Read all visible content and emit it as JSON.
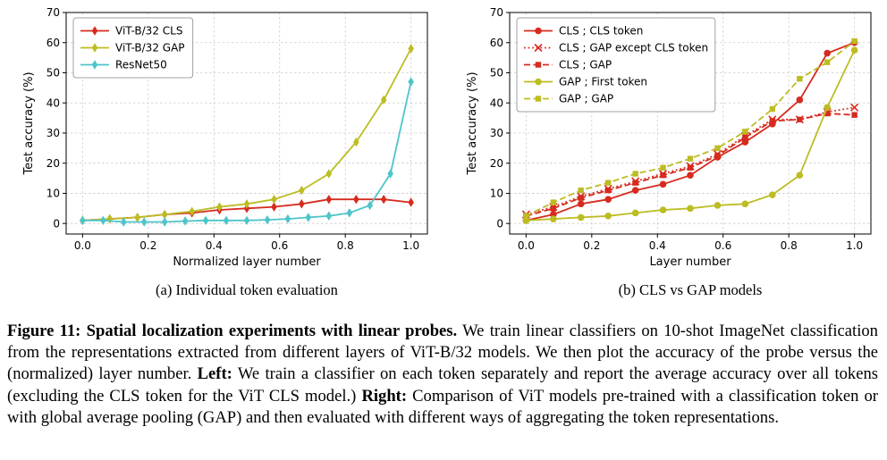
{
  "figure": {
    "subcaption_a": "(a) Individual token evaluation",
    "subcaption_b": "(b) CLS vs GAP models"
  },
  "caption": {
    "p1": "Figure 11: Spatial localization experiments with linear probes.",
    "p2": " We train linear classifiers on 10-shot ImageNet classification from the representations extracted from different layers of ViT-B/32 models. We then plot the accuracy of the probe versus the (normalized) layer number. ",
    "p3": "Left:",
    "p4": " We train a classifier on each token separately and report the average accuracy over all tokens (excluding the CLS token for the ViT CLS model.) ",
    "p5": "Right:",
    "p6": " Comparison of ViT models pre-trained with a classification token or with global average pooling (GAP) and then evaluated with different ways of aggregating the token representations."
  },
  "colors": {
    "red": "#d62b1f",
    "olive": "#bcbd22",
    "cyan": "#4ec5c9"
  },
  "chart_data": [
    {
      "type": "line",
      "title": "",
      "xlabel": "Normalized layer number",
      "ylabel": "Test accuracy (%)",
      "xlim": [
        -0.05,
        1.05
      ],
      "ylim": [
        -3.5,
        70
      ],
      "xticks": [
        0,
        0.2,
        0.4,
        0.6,
        0.8,
        1.0
      ],
      "xtick_labels": [
        "0.0",
        "0.2",
        "0.4",
        "0.6",
        "0.8",
        "1.0"
      ],
      "yticks": [
        0,
        10,
        20,
        30,
        40,
        50,
        60,
        70
      ],
      "ytick_labels": [
        "0",
        "10",
        "20",
        "30",
        "40",
        "50",
        "60",
        "70"
      ],
      "grid": true,
      "legend": true,
      "legend_position": "top-left",
      "series": [
        {
          "name": "ViT-B/32 CLS",
          "color": "#d62b1f",
          "line": "solid",
          "marker": "diamond",
          "x": [
            0,
            0.083,
            0.167,
            0.25,
            0.333,
            0.417,
            0.5,
            0.583,
            0.667,
            0.75,
            0.833,
            0.917,
            1.0
          ],
          "y": [
            1,
            1.5,
            2,
            3,
            3.5,
            4.5,
            5,
            5.5,
            6.5,
            8,
            8,
            8,
            7
          ]
        },
        {
          "name": "ViT-B/32 GAP",
          "color": "#bcbd22",
          "line": "solid",
          "marker": "diamond",
          "x": [
            0,
            0.083,
            0.167,
            0.25,
            0.333,
            0.417,
            0.5,
            0.583,
            0.667,
            0.75,
            0.833,
            0.917,
            1.0
          ],
          "y": [
            1,
            1.5,
            2,
            3,
            4,
            5.5,
            6.5,
            8,
            11,
            16.5,
            27,
            41,
            58
          ]
        },
        {
          "name": "ResNet50",
          "color": "#4ec5c9",
          "line": "solid",
          "marker": "diamond",
          "x": [
            0,
            0.0625,
            0.125,
            0.1875,
            0.25,
            0.3125,
            0.375,
            0.4375,
            0.5,
            0.5625,
            0.625,
            0.6875,
            0.75,
            0.8125,
            0.875,
            0.9375,
            1.0
          ],
          "y": [
            1,
            1,
            0.5,
            0.5,
            0.5,
            0.8,
            1,
            1,
            1,
            1.2,
            1.5,
            2,
            2.5,
            3.5,
            6,
            16.5,
            47
          ]
        }
      ]
    },
    {
      "type": "line",
      "title": "",
      "xlabel": "Layer number",
      "ylabel": "Test accuracy (%)",
      "xlim": [
        -0.05,
        1.05
      ],
      "ylim": [
        -3.5,
        70
      ],
      "xticks": [
        0,
        0.2,
        0.4,
        0.6,
        0.8,
        1.0
      ],
      "xtick_labels": [
        "0.0",
        "0.2",
        "0.4",
        "0.6",
        "0.8",
        "1.0"
      ],
      "yticks": [
        0,
        10,
        20,
        30,
        40,
        50,
        60,
        70
      ],
      "ytick_labels": [
        "0",
        "10",
        "20",
        "30",
        "40",
        "50",
        "60",
        "70"
      ],
      "grid": true,
      "legend": true,
      "legend_position": "top-left",
      "series": [
        {
          "name": "CLS ; CLS token",
          "color": "#d62b1f",
          "line": "solid",
          "marker": "circle",
          "x": [
            0,
            0.083,
            0.167,
            0.25,
            0.333,
            0.417,
            0.5,
            0.583,
            0.667,
            0.75,
            0.833,
            0.917,
            1.0
          ],
          "y": [
            1,
            3,
            6.5,
            8,
            11,
            13,
            16,
            22,
            27,
            33,
            41,
            56.5,
            60
          ]
        },
        {
          "name": "CLS ; GAP except CLS token",
          "color": "#d62b1f",
          "line": "dotted",
          "marker": "x",
          "x": [
            0,
            0.083,
            0.167,
            0.25,
            0.333,
            0.417,
            0.5,
            0.583,
            0.667,
            0.75,
            0.833,
            0.917,
            1.0
          ],
          "y": [
            3,
            5.5,
            9,
            11.5,
            14,
            16.5,
            19,
            23,
            29,
            34.5,
            34.5,
            37,
            38.5
          ]
        },
        {
          "name": "CLS ; GAP",
          "color": "#d62b1f",
          "line": "dashed",
          "marker": "square",
          "x": [
            0,
            0.083,
            0.167,
            0.25,
            0.333,
            0.417,
            0.5,
            0.583,
            0.667,
            0.75,
            0.833,
            0.917,
            1.0
          ],
          "y": [
            2.5,
            5,
            8.5,
            11,
            13.5,
            16,
            18.5,
            22.5,
            28.5,
            34,
            34.5,
            36.5,
            36
          ]
        },
        {
          "name": "GAP ; First token",
          "color": "#bcbd22",
          "line": "solid",
          "marker": "circle",
          "x": [
            0,
            0.083,
            0.167,
            0.25,
            0.333,
            0.417,
            0.5,
            0.583,
            0.667,
            0.75,
            0.833,
            0.917,
            1.0
          ],
          "y": [
            1,
            1.5,
            2,
            2.5,
            3.5,
            4.5,
            5,
            6,
            6.5,
            9.5,
            16,
            38.5,
            57.5
          ]
        },
        {
          "name": "GAP ; GAP",
          "color": "#bcbd22",
          "line": "dashed",
          "marker": "square",
          "x": [
            0,
            0.083,
            0.167,
            0.25,
            0.333,
            0.417,
            0.5,
            0.583,
            0.667,
            0.75,
            0.833,
            0.917,
            1.0
          ],
          "y": [
            2.5,
            7,
            11,
            13.5,
            16.5,
            18.5,
            21.5,
            25,
            30.5,
            38,
            48,
            53.5,
            60.5
          ]
        }
      ]
    }
  ]
}
